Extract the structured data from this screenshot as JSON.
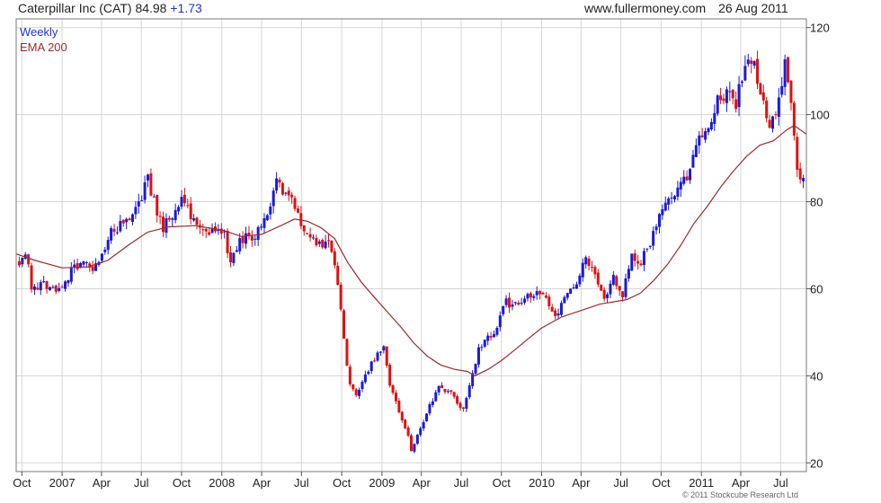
{
  "header": {
    "name": "Caterpillar Inc (CAT)",
    "price": "84.98",
    "change": "+1.73",
    "source": "www.fullermoney.com",
    "date": "26 Aug 2011"
  },
  "legend": {
    "interval": "Weekly",
    "indicator": "EMA 200"
  },
  "copyright": "© 2011 Stockcube Research Ltd",
  "colors": {
    "up": "#1a1adb",
    "down": "#e01010",
    "ema": "#9e2a2a",
    "grid": "#d6d6d6",
    "legend_interval": "#2233cc",
    "legend_indicator": "#9e2a2a"
  },
  "chart_data": {
    "type": "candlestick",
    "y_scale": "linear",
    "y_axis_side": "right",
    "ylim": [
      18,
      122
    ],
    "y_ticks": [
      20,
      40,
      60,
      80,
      100,
      120
    ],
    "grid": true,
    "legend_position": "top-left",
    "x_range": [
      "2006-09-18",
      "2011-08-29"
    ],
    "x_ticks": [
      {
        "date": "2006-10-01",
        "label": "Oct"
      },
      {
        "date": "2007-01-01",
        "label": "2007"
      },
      {
        "date": "2007-04-01",
        "label": "Apr"
      },
      {
        "date": "2007-07-01",
        "label": "Jul"
      },
      {
        "date": "2007-10-01",
        "label": "Oct"
      },
      {
        "date": "2008-01-01",
        "label": "2008"
      },
      {
        "date": "2008-04-01",
        "label": "Apr"
      },
      {
        "date": "2008-07-01",
        "label": "Jul"
      },
      {
        "date": "2008-10-01",
        "label": "Oct"
      },
      {
        "date": "2009-01-01",
        "label": "2009"
      },
      {
        "date": "2009-04-01",
        "label": "Apr"
      },
      {
        "date": "2009-07-01",
        "label": "Jul"
      },
      {
        "date": "2009-10-01",
        "label": "Oct"
      },
      {
        "date": "2010-01-01",
        "label": "2010"
      },
      {
        "date": "2010-04-01",
        "label": "Apr"
      },
      {
        "date": "2010-07-01",
        "label": "Jul"
      },
      {
        "date": "2010-10-01",
        "label": "Oct"
      },
      {
        "date": "2011-01-01",
        "label": "2011"
      },
      {
        "date": "2011-04-01",
        "label": "Apr"
      },
      {
        "date": "2011-07-01",
        "label": "Jul"
      }
    ],
    "price_path": [
      [
        "2006-09-25",
        66
      ],
      [
        "2006-10-09",
        69
      ],
      [
        "2006-10-23",
        60
      ],
      [
        "2006-11-20",
        61
      ],
      [
        "2006-12-25",
        60
      ],
      [
        "2007-01-15",
        63
      ],
      [
        "2007-02-12",
        66
      ],
      [
        "2007-03-12",
        64
      ],
      [
        "2007-04-02",
        67
      ],
      [
        "2007-04-23",
        73
      ],
      [
        "2007-05-28",
        76
      ],
      [
        "2007-06-25",
        80
      ],
      [
        "2007-07-16",
        85
      ],
      [
        "2007-08-06",
        78
      ],
      [
        "2007-08-20",
        74
      ],
      [
        "2007-09-10",
        77
      ],
      [
        "2007-10-08",
        81
      ],
      [
        "2007-10-29",
        75
      ],
      [
        "2007-12-03",
        73
      ],
      [
        "2008-01-07",
        72
      ],
      [
        "2008-01-21",
        66
      ],
      [
        "2008-02-04",
        70
      ],
      [
        "2008-02-25",
        72
      ],
      [
        "2008-03-10",
        70
      ],
      [
        "2008-03-24",
        74
      ],
      [
        "2008-04-14",
        77
      ],
      [
        "2008-05-05",
        84
      ],
      [
        "2008-05-26",
        82
      ],
      [
        "2008-06-16",
        79
      ],
      [
        "2008-07-07",
        73
      ],
      [
        "2008-08-04",
        70
      ],
      [
        "2008-09-01",
        70
      ],
      [
        "2008-09-22",
        62
      ],
      [
        "2008-10-06",
        48
      ],
      [
        "2008-10-20",
        38
      ],
      [
        "2008-11-03",
        36
      ],
      [
        "2008-11-24",
        40
      ],
      [
        "2008-12-15",
        44
      ],
      [
        "2009-01-05",
        46
      ],
      [
        "2009-01-19",
        38
      ],
      [
        "2009-02-09",
        32
      ],
      [
        "2009-03-02",
        26
      ],
      [
        "2009-03-09",
        23
      ],
      [
        "2009-03-30",
        28
      ],
      [
        "2009-04-20",
        33
      ],
      [
        "2009-05-11",
        37
      ],
      [
        "2009-06-08",
        36
      ],
      [
        "2009-07-06",
        32
      ],
      [
        "2009-07-27",
        40
      ],
      [
        "2009-08-10",
        46
      ],
      [
        "2009-09-14",
        50
      ],
      [
        "2009-10-12",
        57
      ],
      [
        "2009-11-02",
        56
      ],
      [
        "2009-12-07",
        59
      ],
      [
        "2010-01-11",
        58
      ],
      [
        "2010-02-01",
        53
      ],
      [
        "2010-02-22",
        58
      ],
      [
        "2010-03-22",
        62
      ],
      [
        "2010-04-12",
        67
      ],
      [
        "2010-05-03",
        64
      ],
      [
        "2010-05-24",
        58
      ],
      [
        "2010-06-14",
        63
      ],
      [
        "2010-07-05",
        59
      ],
      [
        "2010-07-26",
        68
      ],
      [
        "2010-08-16",
        66
      ],
      [
        "2010-09-06",
        71
      ],
      [
        "2010-10-04",
        78
      ],
      [
        "2010-11-01",
        81
      ],
      [
        "2010-11-29",
        86
      ],
      [
        "2010-12-20",
        93
      ],
      [
        "2011-01-10",
        95
      ],
      [
        "2011-02-07",
        103
      ],
      [
        "2011-03-07",
        106
      ],
      [
        "2011-03-21",
        103
      ],
      [
        "2011-04-11",
        112
      ],
      [
        "2011-05-02",
        114
      ],
      [
        "2011-05-16",
        104
      ],
      [
        "2011-06-06",
        98
      ],
      [
        "2011-06-20",
        99
      ],
      [
        "2011-07-11",
        111
      ],
      [
        "2011-07-25",
        104
      ],
      [
        "2011-08-08",
        88
      ],
      [
        "2011-08-22",
        84
      ]
    ],
    "candle_seed": 20110826,
    "series": [
      {
        "name": "EMA 200",
        "type": "line",
        "points": [
          [
            "2006-09-18",
            68
          ],
          [
            "2006-11-01",
            66.5
          ],
          [
            "2007-01-01",
            64.8
          ],
          [
            "2007-03-01",
            65
          ],
          [
            "2007-04-15",
            66.5
          ],
          [
            "2007-06-01",
            70
          ],
          [
            "2007-07-15",
            73
          ],
          [
            "2007-09-01",
            74.2
          ],
          [
            "2007-11-01",
            74.5
          ],
          [
            "2008-01-01",
            73.5
          ],
          [
            "2008-02-15",
            72
          ],
          [
            "2008-04-01",
            72.5
          ],
          [
            "2008-05-15",
            74.5
          ],
          [
            "2008-06-15",
            76
          ],
          [
            "2008-07-15",
            75.5
          ],
          [
            "2008-08-15",
            74
          ],
          [
            "2008-09-15",
            71.5
          ],
          [
            "2008-10-15",
            66
          ],
          [
            "2008-11-15",
            61.5
          ],
          [
            "2008-12-15",
            58
          ],
          [
            "2009-01-15",
            54.5
          ],
          [
            "2009-02-15",
            51
          ],
          [
            "2009-03-15",
            47.5
          ],
          [
            "2009-04-15",
            44.5
          ],
          [
            "2009-05-15",
            42.5
          ],
          [
            "2009-06-15",
            41.5
          ],
          [
            "2009-07-15",
            41
          ],
          [
            "2009-08-01",
            40
          ],
          [
            "2009-09-01",
            41.5
          ],
          [
            "2009-10-01",
            43.5
          ],
          [
            "2009-11-01",
            46
          ],
          [
            "2009-12-01",
            48.5
          ],
          [
            "2010-01-01",
            51
          ],
          [
            "2010-02-15",
            53.5
          ],
          [
            "2010-04-01",
            55
          ],
          [
            "2010-05-15",
            56.5
          ],
          [
            "2010-06-15",
            57
          ],
          [
            "2010-07-15",
            57.5
          ],
          [
            "2010-08-15",
            59
          ],
          [
            "2010-09-15",
            62
          ],
          [
            "2010-10-15",
            65.5
          ],
          [
            "2010-11-15",
            70
          ],
          [
            "2010-12-15",
            75
          ],
          [
            "2011-01-15",
            79
          ],
          [
            "2011-02-15",
            83.5
          ],
          [
            "2011-03-15",
            87
          ],
          [
            "2011-04-15",
            90.5
          ],
          [
            "2011-05-15",
            93
          ],
          [
            "2011-06-15",
            94
          ],
          [
            "2011-07-15",
            96.5
          ],
          [
            "2011-08-01",
            97.5
          ],
          [
            "2011-08-29",
            95.5
          ]
        ]
      }
    ]
  }
}
